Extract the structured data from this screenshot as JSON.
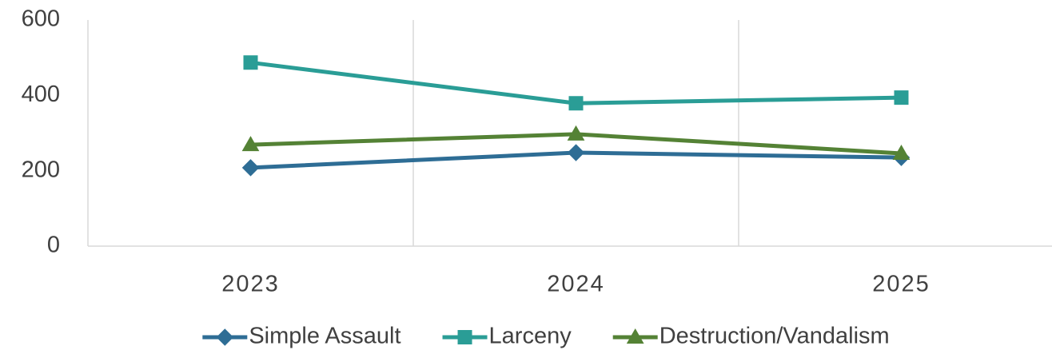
{
  "chart_data": {
    "type": "line",
    "categories": [
      "2023",
      "2024",
      "2025"
    ],
    "series": [
      {
        "name": "Simple Assault",
        "color": "#2e6d95",
        "marker": "diamond",
        "values": [
          208,
          248,
          235
        ]
      },
      {
        "name": "Larceny",
        "color": "#2a9d96",
        "marker": "square",
        "values": [
          487,
          379,
          394
        ]
      },
      {
        "name": "Destruction/Vandalism",
        "color": "#548235",
        "marker": "triangle",
        "values": [
          269,
          297,
          246
        ]
      }
    ],
    "ylim": [
      0,
      600
    ],
    "yticks": [
      0,
      200,
      400,
      600
    ],
    "grid": "x",
    "legend": "bottom"
  }
}
